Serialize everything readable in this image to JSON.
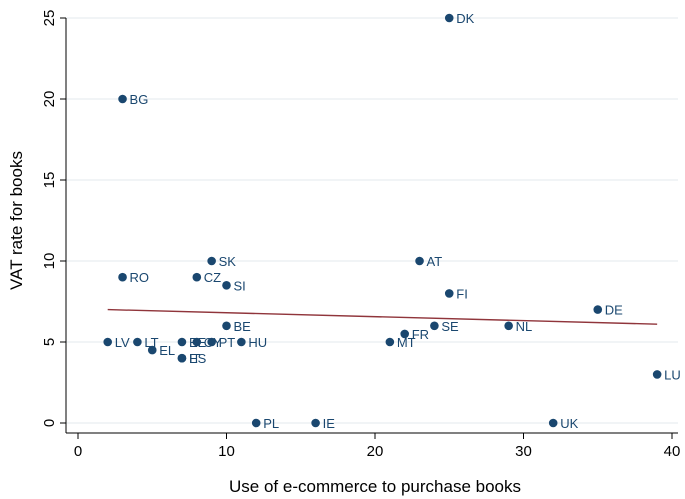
{
  "chart_data": {
    "type": "scatter",
    "xlabel": "Use of e-commerce to purchase books",
    "ylabel": "VAT rate for books",
    "xlim": [
      0,
      40
    ],
    "ylim": [
      0,
      25
    ],
    "x_ticks": [
      0,
      10,
      20,
      30,
      40
    ],
    "y_ticks": [
      0,
      5,
      10,
      15,
      20,
      25
    ],
    "grid": "horizontal",
    "legend": "none",
    "colors": {
      "point": "#1a476f",
      "fit_line": "#90353b",
      "grid": "#e3e9ee"
    },
    "points": [
      {
        "label": "DK",
        "x": 25,
        "y": 25
      },
      {
        "label": "BG",
        "x": 3,
        "y": 20
      },
      {
        "label": "SK",
        "x": 9,
        "y": 10
      },
      {
        "label": "AT",
        "x": 23,
        "y": 10
      },
      {
        "label": "RO",
        "x": 3,
        "y": 9
      },
      {
        "label": "CZ",
        "x": 8,
        "y": 9
      },
      {
        "label": "SI",
        "x": 10,
        "y": 8.5
      },
      {
        "label": "FI",
        "x": 25,
        "y": 8
      },
      {
        "label": "DE",
        "x": 35,
        "y": 7
      },
      {
        "label": "BE",
        "x": 10,
        "y": 6
      },
      {
        "label": "SE",
        "x": 24,
        "y": 6
      },
      {
        "label": "NL",
        "x": 29,
        "y": 6
      },
      {
        "label": "FR",
        "x": 22,
        "y": 5.5
      },
      {
        "label": "LV",
        "x": 2,
        "y": 5
      },
      {
        "label": "LT",
        "x": 4,
        "y": 5
      },
      {
        "label": "EE",
        "x": 7,
        "y": 5
      },
      {
        "label": "CY",
        "x": 8,
        "y": 5
      },
      {
        "label": "PT",
        "x": 9,
        "y": 5
      },
      {
        "label": "HU",
        "x": 11,
        "y": 5
      },
      {
        "label": "MT",
        "x": 21,
        "y": 5
      },
      {
        "label": "EL",
        "x": 5,
        "y": 4.5
      },
      {
        "label": "IT",
        "x": 7,
        "y": 4
      },
      {
        "label": "ES",
        "x": 7,
        "y": 4
      },
      {
        "label": "LU",
        "x": 39,
        "y": 3
      },
      {
        "label": "PL",
        "x": 12,
        "y": 0
      },
      {
        "label": "IE",
        "x": 16,
        "y": 0
      },
      {
        "label": "UK",
        "x": 32,
        "y": 0
      }
    ],
    "fit_line": {
      "x": [
        2,
        39
      ],
      "y": [
        7.0,
        6.1
      ]
    }
  }
}
